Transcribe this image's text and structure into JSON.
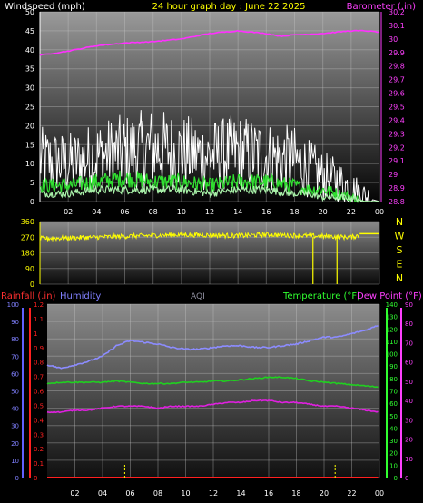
{
  "chart_data": [
    {
      "type": "line",
      "panel": "wind-barometer",
      "title": "24 hour graph day : June 22 2025",
      "left_axis": {
        "label": "Windspeed (mph)",
        "ticks": [
          0,
          5,
          10,
          15,
          20,
          25,
          30,
          35,
          40,
          45,
          50
        ],
        "range": [
          0,
          50
        ]
      },
      "right_axis": {
        "label": "Barometer (.in)",
        "ticks": [
          "28.8",
          "28.9",
          "29",
          "29.1",
          "29.2",
          "29.3",
          "29.4",
          "29.5",
          "29.6",
          "29.7",
          "29.8",
          "29.9",
          "30",
          "30.1",
          "30.2"
        ],
        "range": [
          28.8,
          30.2
        ]
      },
      "x_ticks": [
        "02",
        "04",
        "06",
        "08",
        "10",
        "12",
        "14",
        "16",
        "18",
        "20",
        "22",
        "00"
      ],
      "grid": true,
      "series": [
        {
          "values_axis": "right",
          "x": [
            0,
            2,
            4,
            6,
            8,
            10,
            12,
            14,
            16,
            17,
            18,
            20,
            22,
            23,
            24
          ],
          "y": [
            29.88,
            29.91,
            29.95,
            29.97,
            29.98,
            30.0,
            30.04,
            30.06,
            30.04,
            30.02,
            30.03,
            30.04,
            30.06,
            30.06,
            30.05
          ]
        },
        {
          "values_axis": "left",
          "x": [
            0,
            2,
            4,
            6,
            8,
            10,
            12,
            14,
            16,
            18,
            19,
            20,
            21,
            22,
            23,
            24
          ],
          "y": [
            10,
            9,
            11,
            12,
            13,
            12,
            11,
            12,
            11,
            10,
            8,
            6,
            5,
            3,
            1,
            0
          ]
        },
        {
          "values_axis": "left",
          "x": [
            0,
            2,
            4,
            6,
            8,
            10,
            12,
            14,
            16,
            18,
            19,
            20,
            21,
            22,
            23,
            24
          ],
          "y": [
            4,
            4,
            5,
            6,
            5,
            5,
            4,
            5,
            5,
            4,
            3,
            3,
            2,
            1,
            0,
            0
          ]
        },
        {
          "values_axis": "left",
          "x": [
            0,
            2,
            4,
            6,
            8,
            10,
            12,
            14,
            16,
            18,
            19,
            20,
            21,
            22,
            23,
            24
          ],
          "y": [
            2,
            2,
            3,
            3,
            3,
            3,
            2,
            3,
            3,
            2,
            2,
            1,
            1,
            1,
            0,
            0
          ]
        }
      ]
    },
    {
      "type": "line",
      "panel": "wind-direction",
      "left_axis": {
        "ticks": [
          0,
          90,
          180,
          270,
          360
        ],
        "range": [
          0,
          360
        ]
      },
      "compass": [
        "N",
        "W",
        "S",
        "E",
        "N"
      ],
      "series": [
        {
          "x": [
            0,
            2,
            4,
            6,
            8,
            10,
            12,
            14,
            16,
            18,
            20,
            22,
            23,
            24
          ],
          "y": [
            262,
            265,
            270,
            275,
            280,
            285,
            282,
            278,
            285,
            280,
            275,
            270,
            290,
            290
          ]
        }
      ],
      "spikes": [
        {
          "x": 19.3,
          "y": 0
        },
        {
          "x": 21.0,
          "y": 0
        }
      ]
    },
    {
      "type": "line",
      "panel": "climate",
      "header_labels": {
        "rain": "Rainfall (.in)",
        "humidity": "Humidity",
        "aqi": "AQI",
        "temperature": "Temperature (°F)",
        "dewpoint": "Dew Point (°F)"
      },
      "humidity_axis": {
        "ticks": [
          0,
          10,
          20,
          30,
          40,
          50,
          60,
          70,
          80,
          90,
          100
        ],
        "range": [
          0,
          100
        ]
      },
      "rain_axis": {
        "ticks": [
          "0",
          "0.1",
          "0.2",
          "0.3",
          "0.4",
          "0.5",
          "0.6",
          "0.7",
          "0.8",
          "0.9",
          "1",
          "1.1",
          "1.2"
        ],
        "range": [
          0,
          1.2
        ]
      },
      "temperature_axis": {
        "ticks": [
          0,
          10,
          20,
          30,
          40,
          50,
          60,
          70,
          80,
          90,
          100,
          110,
          120,
          130,
          140
        ],
        "range": [
          0,
          140
        ]
      },
      "dewpoint_axis": {
        "ticks": [
          0,
          10,
          20,
          30,
          40,
          50,
          60,
          70,
          80,
          90
        ],
        "range": [
          0,
          90
        ]
      },
      "x_ticks": [
        "02",
        "04",
        "06",
        "08",
        "10",
        "12",
        "14",
        "16",
        "18",
        "20",
        "22",
        "00"
      ],
      "series": [
        {
          "key": "humidity",
          "x": [
            0,
            1,
            2,
            3,
            4,
            5,
            6,
            7,
            8,
            9,
            10,
            11,
            12,
            13,
            14,
            15,
            16,
            17,
            18,
            19,
            20,
            21,
            22,
            23,
            24
          ],
          "y": [
            65,
            63,
            65,
            67,
            70,
            76,
            79,
            78,
            77,
            75,
            74,
            74,
            75,
            76,
            76,
            75,
            75,
            76,
            77,
            79,
            81,
            81,
            83,
            85,
            88
          ]
        },
        {
          "key": "temperature",
          "x": [
            0,
            1,
            2,
            3,
            4,
            5,
            6,
            7,
            8,
            9,
            10,
            11,
            12,
            13,
            14,
            15,
            16,
            17,
            18,
            19,
            20,
            21,
            22,
            23,
            24
          ],
          "y": [
            76,
            77,
            77,
            77,
            77,
            78,
            77,
            76,
            76,
            76,
            77,
            77,
            78,
            78,
            79,
            80,
            81,
            81,
            80,
            78,
            77,
            76,
            75,
            74,
            73
          ]
        },
        {
          "key": "dewpoint",
          "x": [
            0,
            1,
            2,
            3,
            4,
            5,
            6,
            7,
            8,
            9,
            10,
            11,
            12,
            13,
            14,
            15,
            16,
            17,
            18,
            19,
            20,
            21,
            22,
            23,
            24
          ],
          "y": [
            34,
            34,
            35,
            35,
            36,
            37,
            37,
            37,
            36,
            37,
            37,
            37,
            38,
            39,
            39,
            40,
            40,
            39,
            39,
            38,
            37,
            37,
            36,
            35,
            34
          ]
        },
        {
          "key": "rain",
          "x": [
            0,
            24
          ],
          "y": [
            0,
            0
          ]
        }
      ],
      "aqi_markers": [
        {
          "x": 5.6
        },
        {
          "x": 20.8
        }
      ]
    }
  ]
}
